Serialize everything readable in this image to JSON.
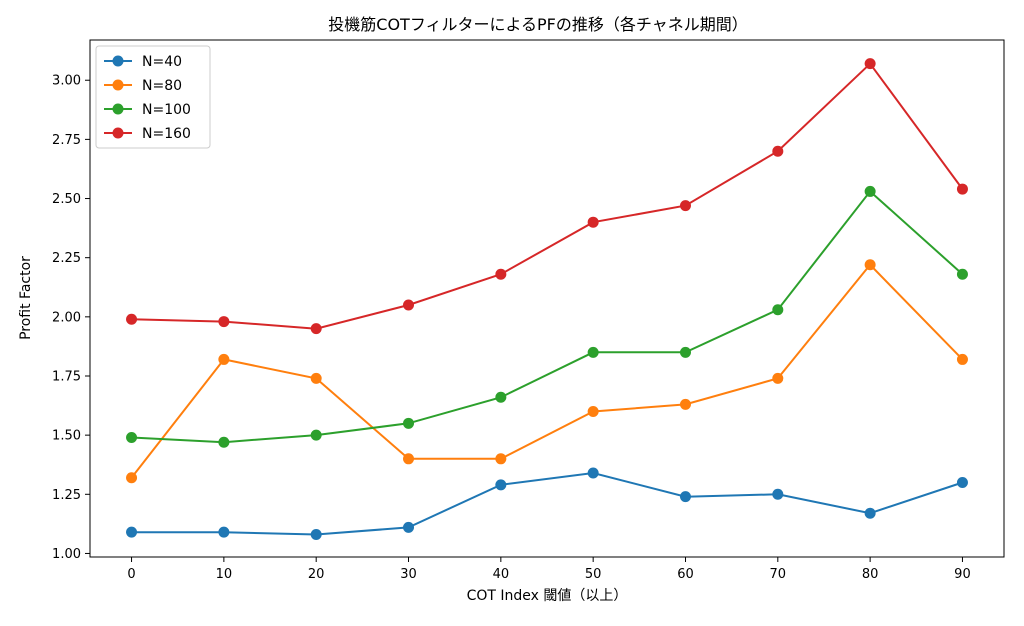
{
  "chart_data": {
    "type": "line",
    "title": "投機筋COTフィルターによるPFの推移（各チャネル期間）",
    "xlabel": "COT Index 閾値（以上）",
    "ylabel": "Profit Factor",
    "x": [
      0,
      10,
      20,
      30,
      40,
      50,
      60,
      70,
      80,
      90
    ],
    "xticks": [
      0,
      10,
      20,
      30,
      40,
      50,
      60,
      70,
      80,
      90
    ],
    "xlim": [
      -4.5,
      94.5
    ],
    "yticks": [
      1.0,
      1.25,
      1.5,
      1.75,
      2.0,
      2.25,
      2.5,
      2.75,
      3.0
    ],
    "ylim": [
      0.985,
      3.17
    ],
    "legend_position": "upper-left",
    "series": [
      {
        "name": "N=40",
        "color": "#1f77b4",
        "values": [
          1.09,
          1.09,
          1.08,
          1.11,
          1.29,
          1.34,
          1.24,
          1.25,
          1.17,
          1.3
        ]
      },
      {
        "name": "N=80",
        "color": "#ff7f0e",
        "values": [
          1.32,
          1.82,
          1.74,
          1.4,
          1.4,
          1.6,
          1.63,
          1.74,
          2.22,
          1.82
        ]
      },
      {
        "name": "N=100",
        "color": "#2ca02c",
        "values": [
          1.49,
          1.47,
          1.5,
          1.55,
          1.66,
          1.85,
          1.85,
          2.03,
          2.53,
          2.18
        ]
      },
      {
        "name": "N=160",
        "color": "#d62728",
        "values": [
          1.99,
          1.98,
          1.95,
          2.05,
          2.18,
          2.4,
          2.47,
          2.7,
          3.07,
          2.54
        ]
      }
    ]
  }
}
